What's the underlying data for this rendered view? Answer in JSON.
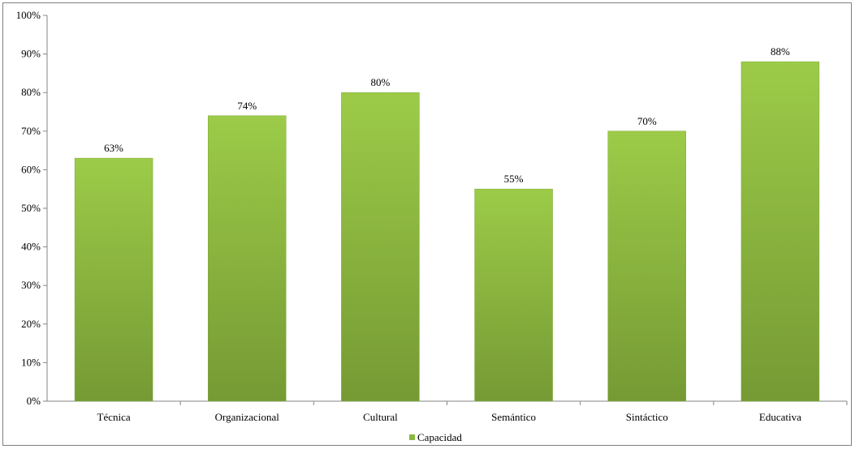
{
  "chart_data": {
    "type": "bar",
    "categories": [
      "Técnica",
      "Organizacional",
      "Cultural",
      "Semántico",
      "Sintáctico",
      "Educativa"
    ],
    "series": [
      {
        "name": "Capacidad",
        "values": [
          63,
          74,
          80,
          55,
          70,
          88
        ],
        "value_labels": [
          "63%",
          "74%",
          "80%",
          "55%",
          "70%",
          "88%"
        ],
        "color": "#8ab73f"
      }
    ],
    "ylim": [
      0,
      100
    ],
    "yticks": [
      "0%",
      "10%",
      "20%",
      "30%",
      "40%",
      "50%",
      "60%",
      "70%",
      "80%",
      "90%",
      "100%"
    ],
    "grid": false,
    "legend_position": "bottom",
    "title": "",
    "xlabel": "",
    "ylabel": ""
  }
}
